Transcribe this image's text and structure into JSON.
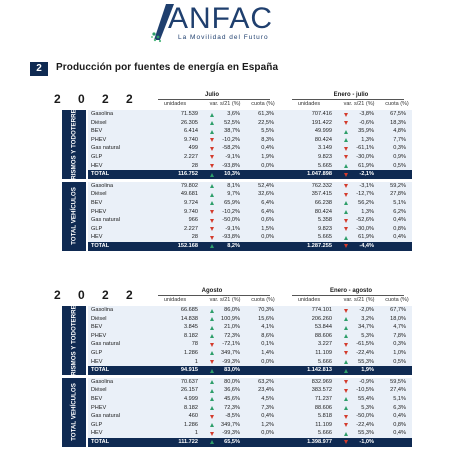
{
  "header": {
    "logo_text": "ANFAC",
    "tagline": "La Movilidad del Futuro"
  },
  "section": {
    "number": "2",
    "title": "Producción por fuentes de energía en España"
  },
  "tables": [
    {
      "year": "2 0 2 2",
      "period1": "Julio",
      "period2": "Enero - julio",
      "columns": [
        "unidades",
        "var. s/21 (%)",
        "cuota (%)",
        "unidades",
        "var. s/21 (%)",
        "cuota (%)"
      ],
      "groups": [
        {
          "side_label": "TURISMOS Y TODOTERRENO",
          "rows": [
            {
              "label": "Gasolina",
              "u1": "71.539",
              "d1": "up",
              "v1": "3,6%",
              "q1": "61,3%",
              "u2": "707.416",
              "d2": "down",
              "v2": "-3,8%",
              "q2": "67,5%"
            },
            {
              "label": "Diésel",
              "u1": "26.305",
              "d1": "up",
              "v1": "52,5%",
              "q1": "22,5%",
              "u2": "191.422",
              "d2": "down",
              "v2": "-0,6%",
              "q2": "18,3%"
            },
            {
              "label": "BEV",
              "u1": "6.414",
              "d1": "up",
              "v1": "38,7%",
              "q1": "5,5%",
              "u2": "49.999",
              "d2": "up",
              "v2": "35,9%",
              "q2": "4,8%"
            },
            {
              "label": "PHEV",
              "u1": "9.740",
              "d1": "down",
              "v1": "-10,2%",
              "q1": "8,3%",
              "u2": "80.424",
              "d2": "up",
              "v2": "1,3%",
              "q2": "7,7%"
            },
            {
              "label": "Gas natural",
              "u1": "499",
              "d1": "down",
              "v1": "-58,2%",
              "q1": "0,4%",
              "u2": "3.149",
              "d2": "down",
              "v2": "-61,1%",
              "q2": "0,3%"
            },
            {
              "label": "GLP",
              "u1": "2.227",
              "d1": "down",
              "v1": "-9,1%",
              "q1": "1,9%",
              "u2": "9.823",
              "d2": "down",
              "v2": "-30,0%",
              "q2": "0,9%"
            },
            {
              "label": "HEV",
              "u1": "28",
              "d1": "down",
              "v1": "-93,8%",
              "q1": "0,0%",
              "u2": "5.665",
              "d2": "up",
              "v2": "61,9%",
              "q2": "0,5%"
            }
          ],
          "total": {
            "label": "TOTAL",
            "u1": "116.752",
            "d1": "up",
            "v1": "10,3%",
            "q1": "",
            "u2": "1.047.898",
            "d2": "down",
            "v2": "-2,1%",
            "q2": ""
          }
        },
        {
          "side_label": "TOTAL VEHÍCULOS",
          "rows": [
            {
              "label": "Gasolina",
              "u1": "79.802",
              "d1": "up",
              "v1": "8,1%",
              "q1": "52,4%",
              "u2": "762.332",
              "d2": "down",
              "v2": "-3,1%",
              "q2": "59,2%"
            },
            {
              "label": "Diésel",
              "u1": "49.681",
              "d1": "up",
              "v1": "9,7%",
              "q1": "32,6%",
              "u2": "357.415",
              "d2": "down",
              "v2": "-12,7%",
              "q2": "27,8%"
            },
            {
              "label": "BEV",
              "u1": "9.724",
              "d1": "up",
              "v1": "65,9%",
              "q1": "6,4%",
              "u2": "66.238",
              "d2": "up",
              "v2": "56,2%",
              "q2": "5,1%"
            },
            {
              "label": "PHEV",
              "u1": "9.740",
              "d1": "down",
              "v1": "-10,2%",
              "q1": "6,4%",
              "u2": "80.424",
              "d2": "up",
              "v2": "1,3%",
              "q2": "6,2%"
            },
            {
              "label": "Gas natural",
              "u1": "966",
              "d1": "down",
              "v1": "-50,0%",
              "q1": "0,6%",
              "u2": "5.358",
              "d2": "down",
              "v2": "-52,6%",
              "q2": "0,4%"
            },
            {
              "label": "GLP",
              "u1": "2.227",
              "d1": "down",
              "v1": "-9,1%",
              "q1": "1,5%",
              "u2": "9.823",
              "d2": "down",
              "v2": "-30,0%",
              "q2": "0,8%"
            },
            {
              "label": "HEV",
              "u1": "28",
              "d1": "down",
              "v1": "-93,8%",
              "q1": "0,0%",
              "u2": "5.665",
              "d2": "up",
              "v2": "61,9%",
              "q2": "0,4%"
            }
          ],
          "total": {
            "label": "TOTAL",
            "u1": "152.168",
            "d1": "up",
            "v1": "8,2%",
            "q1": "",
            "u2": "1.287.255",
            "d2": "down",
            "v2": "-4,4%",
            "q2": ""
          }
        }
      ]
    },
    {
      "year": "2 0 2 2",
      "period1": "Agosto",
      "period2": "Enero - agosto",
      "columns": [
        "unidades",
        "var. s/21 (%)",
        "cuota (%)",
        "unidades",
        "var. s/21 (%)",
        "cuota (%)"
      ],
      "groups": [
        {
          "side_label": "TURISMOS Y TODOTERRENO",
          "rows": [
            {
              "label": "Gasolina",
              "u1": "66.685",
              "d1": "up",
              "v1": "86,0%",
              "q1": "70,3%",
              "u2": "774.101",
              "d2": "down",
              "v2": "-2,0%",
              "q2": "67,7%"
            },
            {
              "label": "Diésel",
              "u1": "14.838",
              "d1": "up",
              "v1": "100,9%",
              "q1": "15,6%",
              "u2": "206.260",
              "d2": "up",
              "v2": "3,2%",
              "q2": "18,0%"
            },
            {
              "label": "BEV",
              "u1": "3.845",
              "d1": "up",
              "v1": "21,0%",
              "q1": "4,1%",
              "u2": "53.844",
              "d2": "up",
              "v2": "34,7%",
              "q2": "4,7%"
            },
            {
              "label": "PHEV",
              "u1": "8.182",
              "d1": "up",
              "v1": "72,3%",
              "q1": "8,6%",
              "u2": "88.606",
              "d2": "up",
              "v2": "5,3%",
              "q2": "7,8%"
            },
            {
              "label": "Gas natural",
              "u1": "78",
              "d1": "down",
              "v1": "-72,1%",
              "q1": "0,1%",
              "u2": "3.227",
              "d2": "down",
              "v2": "-61,5%",
              "q2": "0,3%"
            },
            {
              "label": "GLP",
              "u1": "1.286",
              "d1": "up",
              "v1": "349,7%",
              "q1": "1,4%",
              "u2": "11.109",
              "d2": "down",
              "v2": "-22,4%",
              "q2": "1,0%"
            },
            {
              "label": "HEV",
              "u1": "1",
              "d1": "down",
              "v1": "-99,3%",
              "q1": "0,0%",
              "u2": "5.666",
              "d2": "up",
              "v2": "55,3%",
              "q2": "0,5%"
            }
          ],
          "total": {
            "label": "TOTAL",
            "u1": "94.915",
            "d1": "up",
            "v1": "83,0%",
            "q1": "",
            "u2": "1.142.813",
            "d2": "up",
            "v2": "1,9%",
            "q2": ""
          }
        },
        {
          "side_label": "TOTAL VEHÍCULOS",
          "rows": [
            {
              "label": "Gasolina",
              "u1": "70.637",
              "d1": "up",
              "v1": "80,0%",
              "q1": "63,2%",
              "u2": "832.969",
              "d2": "down",
              "v2": "-0,9%",
              "q2": "59,5%"
            },
            {
              "label": "Diésel",
              "u1": "26.157",
              "d1": "up",
              "v1": "36,6%",
              "q1": "23,4%",
              "u2": "383.572",
              "d2": "down",
              "v2": "-10,5%",
              "q2": "27,4%"
            },
            {
              "label": "BEV",
              "u1": "4.999",
              "d1": "up",
              "v1": "45,6%",
              "q1": "4,5%",
              "u2": "71.237",
              "d2": "up",
              "v2": "55,4%",
              "q2": "5,1%"
            },
            {
              "label": "PHEV",
              "u1": "8.182",
              "d1": "up",
              "v1": "72,3%",
              "q1": "7,3%",
              "u2": "88.606",
              "d2": "up",
              "v2": "5,3%",
              "q2": "6,3%"
            },
            {
              "label": "Gas natural",
              "u1": "460",
              "d1": "down",
              "v1": "-8,5%",
              "q1": "0,4%",
              "u2": "5.818",
              "d2": "down",
              "v2": "-50,0%",
              "q2": "0,4%"
            },
            {
              "label": "GLP",
              "u1": "1.286",
              "d1": "up",
              "v1": "349,7%",
              "q1": "1,2%",
              "u2": "11.109",
              "d2": "down",
              "v2": "-22,4%",
              "q2": "0,8%"
            },
            {
              "label": "HEV",
              "u1": "1",
              "d1": "down",
              "v1": "-99,3%",
              "q1": "0,0%",
              "u2": "5.666",
              "d2": "up",
              "v2": "55,3%",
              "q2": "0,4%"
            }
          ],
          "total": {
            "label": "TOTAL",
            "u1": "111.722",
            "d1": "up",
            "v1": "65,5%",
            "q1": "",
            "u2": "1.398.977",
            "d2": "down",
            "v2": "-1,0%",
            "q2": ""
          }
        }
      ]
    }
  ],
  "colors": {
    "navy": "#0f2a52",
    "row_bg": "#eaf0f8",
    "up": "#2e9e6a",
    "down": "#d33b2c"
  }
}
